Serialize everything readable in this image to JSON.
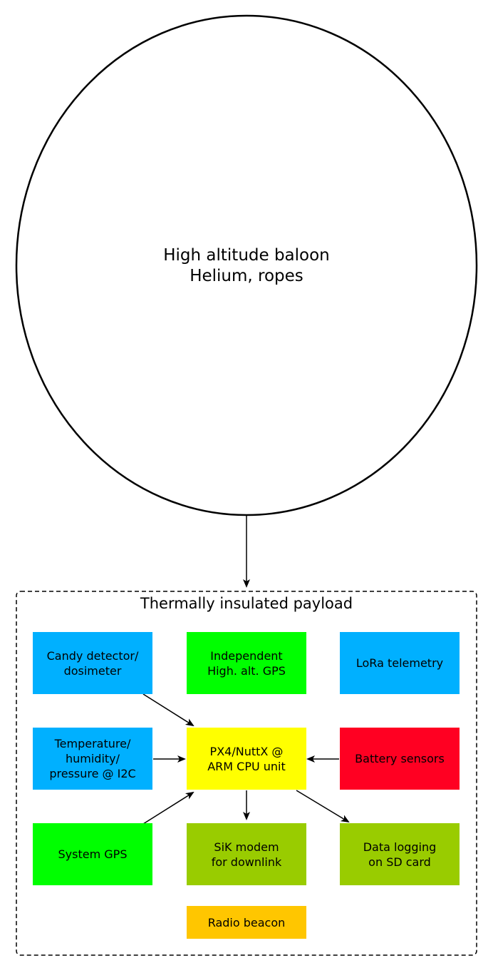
{
  "balloon": {
    "line1": "High altitude baloon",
    "line2": "Helium, ropes"
  },
  "payload": {
    "title": "Thermally insulated payload"
  },
  "colors": {
    "sensor_blue": "#00b0ff",
    "gps_green": "#00ff00",
    "cpu_yellow": "#ffff00",
    "battery_red": "#ff0022",
    "output_olive": "#99cc00",
    "beacon_orange": "#ffc600"
  },
  "boxes": {
    "candy": {
      "line1": "Candy detector/",
      "line2": "dosimeter"
    },
    "independent_gps": {
      "line1": "Independent",
      "line2": "High. alt. GPS"
    },
    "lora": {
      "line1": "LoRa telemetry"
    },
    "temperature": {
      "line1": "Temperature/",
      "line2": "humidity/",
      "line3": "pressure @ I2C"
    },
    "cpu": {
      "line1": "PX4/NuttX @",
      "line2": "ARM CPU unit"
    },
    "battery": {
      "line1": "Battery sensors"
    },
    "system_gps": {
      "line1": "System GPS"
    },
    "sik": {
      "line1": "SiK modem",
      "line2": "for downlink"
    },
    "logging": {
      "line1": "Data logging",
      "line2": "on SD card"
    },
    "beacon": {
      "line1": "Radio beacon"
    }
  }
}
